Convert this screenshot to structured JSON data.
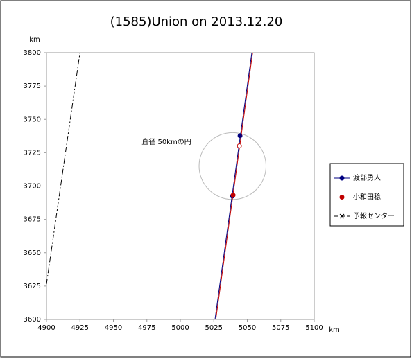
{
  "chart_data": {
    "type": "line",
    "title": "(1585)Union on 2013.12.20",
    "x_label": "km",
    "y_label": "km",
    "xlim": [
      4900,
      5100
    ],
    "ylim": [
      3600,
      3800
    ],
    "xticks": [
      4900,
      4925,
      4950,
      4975,
      5000,
      5025,
      5050,
      5075,
      5100
    ],
    "yticks": [
      3600,
      3625,
      3650,
      3675,
      3700,
      3725,
      3750,
      3775,
      3800
    ],
    "grid": false,
    "legend": "right",
    "series": [
      {
        "name": "渡部勇人",
        "color": "#000080",
        "marker": "circle",
        "line_style": "solid",
        "x": [
          5025.9,
          5053.4
        ],
        "values": [
          3600,
          3800
        ],
        "markers": [
          {
            "x": 5044.6,
            "y": 3737.7,
            "filled": true
          },
          {
            "x": 5038.9,
            "y": 3692.5,
            "filled": true
          }
        ]
      },
      {
        "name": "小和田稔",
        "color": "#c00000",
        "marker": "circle",
        "line_style": "solid",
        "x": [
          5026.5,
          5054.0
        ],
        "values": [
          3600,
          3800
        ],
        "markers": [
          {
            "x": 5039.4,
            "y": 3693.2,
            "filled": true
          },
          {
            "x": 5044.1,
            "y": 3730.1,
            "filled": false
          }
        ]
      },
      {
        "name": "予報センター",
        "color": "#000000",
        "marker": "x",
        "line_style": "dashed",
        "x": [
          4900,
          4925
        ],
        "values": [
          3626.5,
          3800
        ],
        "markers": []
      }
    ],
    "circle": {
      "cx": 5039,
      "cy": 3715,
      "diameter": 50,
      "label": "直径 50kmの円"
    }
  }
}
